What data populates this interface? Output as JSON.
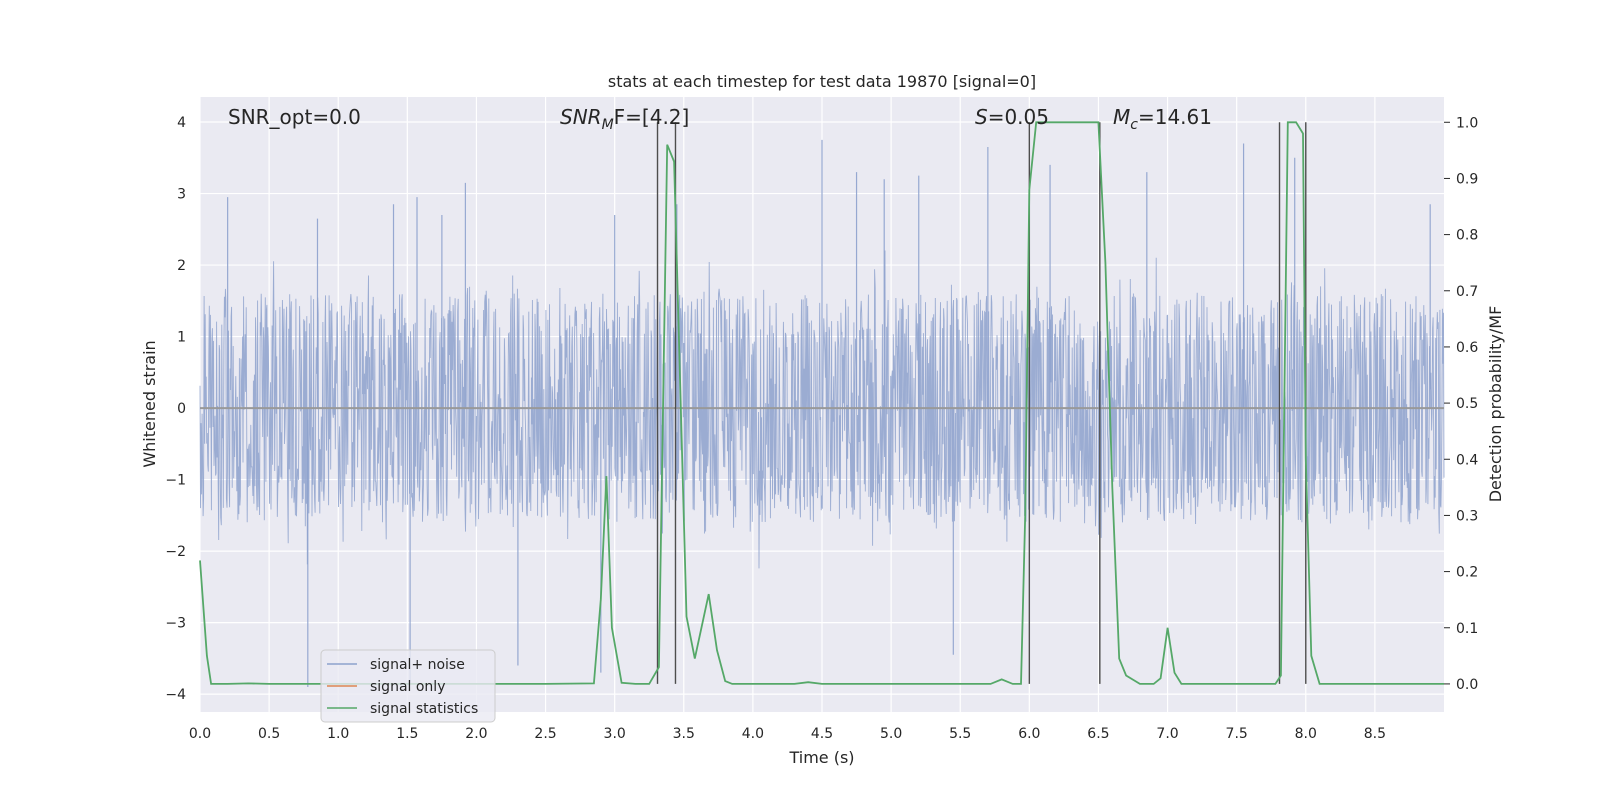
{
  "chart_data": {
    "type": "line",
    "title": "stats at each timestep for test data 19870 [signal=0]",
    "xlabel": "Time (s)",
    "ylabel_left": "Whitened strain",
    "ylabel_right": "Detection probability/MF",
    "xlim": [
      0.0,
      9.0
    ],
    "ylim_left": [
      -4.25,
      4.35
    ],
    "ylim_right": [
      -0.05,
      1.045
    ],
    "x_ticks": [
      0.0,
      0.5,
      1.0,
      1.5,
      2.0,
      2.5,
      3.0,
      3.5,
      4.0,
      4.5,
      5.0,
      5.5,
      6.0,
      6.5,
      7.0,
      7.5,
      8.0,
      8.5
    ],
    "x_tick_labels": [
      "0.0",
      "0.5",
      "1.0",
      "1.5",
      "2.0",
      "2.5",
      "3.0",
      "3.5",
      "4.0",
      "4.5",
      "5.0",
      "5.5",
      "6.0",
      "6.5",
      "7.0",
      "7.5",
      "8.0",
      "8.5"
    ],
    "y_left_ticks": [
      4,
      3,
      2,
      1,
      0,
      -1,
      -2,
      -3,
      -4
    ],
    "y_left_tick_labels": [
      "4",
      "3",
      "2",
      "1",
      "0",
      "−1",
      "−2",
      "−3",
      "−4"
    ],
    "y_right_ticks": [
      1.0,
      0.9,
      0.8,
      0.7,
      0.6,
      0.5,
      0.4,
      0.3,
      0.2,
      0.1,
      0.0
    ],
    "y_right_tick_labels": [
      "1.0",
      "0.9",
      "0.8",
      "0.7",
      "0.6",
      "0.5",
      "0.4",
      "0.3",
      "0.2",
      "0.1",
      "0.0"
    ],
    "grid": true,
    "annotations": {
      "snr_opt": "SNR_opt=0.0",
      "snr_mf_main": "SNR",
      "snr_mf_sub": "M",
      "snr_mf_tail": "F=[4.2]",
      "s_var": "S",
      "s_val": "=0.05",
      "mc_var": "M",
      "mc_sub": "c",
      "mc_val": "=14.61"
    },
    "series": [
      {
        "name": "signal+ noise",
        "color": "#8da1cd",
        "description": "whitened strain noise, envelope approx [-1.5, 1.6] with spikes to about ±3.8",
        "peak_spikes": [
          [
            0.2,
            2.95
          ],
          [
            0.78,
            -3.9
          ],
          [
            0.85,
            2.65
          ],
          [
            1.4,
            2.85
          ],
          [
            1.52,
            -3.85
          ],
          [
            1.57,
            2.95
          ],
          [
            1.75,
            2.7
          ],
          [
            1.92,
            3.15
          ],
          [
            2.3,
            -3.6
          ],
          [
            2.9,
            -3.7
          ],
          [
            3.0,
            2.7
          ],
          [
            3.45,
            2.85
          ],
          [
            4.5,
            3.75
          ],
          [
            4.75,
            3.3
          ],
          [
            4.95,
            3.2
          ],
          [
            5.2,
            3.25
          ],
          [
            5.45,
            -3.45
          ],
          [
            5.7,
            3.65
          ],
          [
            6.15,
            3.4
          ],
          [
            6.85,
            3.3
          ],
          [
            7.55,
            3.7
          ],
          [
            7.92,
            3.5
          ],
          [
            8.9,
            2.85
          ]
        ],
        "envelope_upper": 1.55,
        "envelope_lower": -1.45
      },
      {
        "name": "signal only",
        "color": "#dd8452",
        "values": 0
      },
      {
        "name": "signal statistics",
        "color": "#55a868",
        "x": [
          0.0,
          0.05,
          0.08,
          0.2,
          0.35,
          0.5,
          1.0,
          1.5,
          2.0,
          2.5,
          2.85,
          2.9,
          2.94,
          2.98,
          3.05,
          3.15,
          3.25,
          3.32,
          3.38,
          3.43,
          3.52,
          3.58,
          3.68,
          3.74,
          3.8,
          3.85,
          4.0,
          4.3,
          4.4,
          4.5,
          5.0,
          5.4,
          5.6,
          5.72,
          5.8,
          5.88,
          5.94,
          5.97,
          6.0,
          6.05,
          6.1,
          6.3,
          6.5,
          6.55,
          6.6,
          6.65,
          6.7,
          6.8,
          6.9,
          6.95,
          7.0,
          7.05,
          7.1,
          7.3,
          7.6,
          7.78,
          7.82,
          7.87,
          7.93,
          7.98,
          8.0,
          8.04,
          8.1,
          8.5,
          9.0
        ],
        "values": [
          0.22,
          0.05,
          0.0,
          0.0,
          0.001,
          0.0,
          0.0,
          0.0,
          0.0,
          0.0,
          0.001,
          0.15,
          0.37,
          0.1,
          0.002,
          0.0,
          0.0,
          0.03,
          0.96,
          0.93,
          0.12,
          0.045,
          0.16,
          0.06,
          0.005,
          0.0,
          0.0,
          0.0,
          0.003,
          0.0,
          0.0,
          0.0,
          0.0,
          0.0,
          0.008,
          0.0,
          0.0,
          0.3,
          0.88,
          1.0,
          1.0,
          1.0,
          1.0,
          0.75,
          0.35,
          0.045,
          0.015,
          0.0,
          0.0,
          0.01,
          0.1,
          0.02,
          0.0,
          0.0,
          0.0,
          0.0,
          0.015,
          1.0,
          1.0,
          0.98,
          0.4,
          0.05,
          0.0,
          0.0,
          0.0
        ]
      }
    ],
    "vertical_lines_x": [
      3.31,
      3.44,
      6.0,
      6.51,
      7.81,
      8.0
    ],
    "legend": {
      "placement": "lower-left",
      "entries": [
        "signal+ noise",
        "signal only",
        "signal statistics"
      ]
    }
  }
}
